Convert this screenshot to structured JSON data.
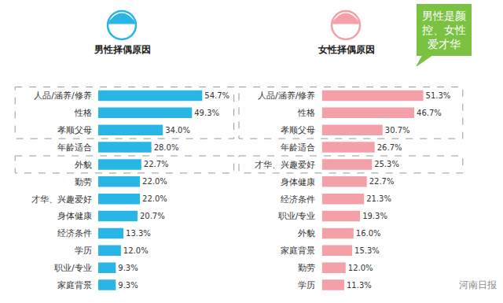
{
  "chart_data": [
    {
      "type": "bar",
      "title": "男性择偶原因",
      "orientation": "horizontal",
      "data_labels": true,
      "tick_labels": "y",
      "color": "#29b6e6",
      "categories": [
        "人品/涵养/修养",
        "性格",
        "孝顺父母",
        "年龄适合",
        "外貌",
        "勤劳",
        "才华、兴趣爱好",
        "身体健康",
        "经济条件",
        "学历",
        "职业/专业",
        "家庭背景"
      ],
      "values": [
        54.7,
        49.3,
        34.0,
        28.0,
        22.7,
        22.0,
        22.0,
        20.7,
        13.3,
        12.0,
        9.3,
        9.3
      ],
      "value_labels": [
        "54.7%",
        "49.3%",
        "34.0%",
        "28.0%",
        "22.7%",
        "22.0%",
        "22.0%",
        "20.7%",
        "13.3%",
        "12.0%",
        "9.3%",
        "9.3%"
      ],
      "xlim": [
        0,
        70
      ]
    },
    {
      "type": "bar",
      "title": "女性择偶原因",
      "orientation": "horizontal",
      "data_labels": true,
      "tick_labels": "y",
      "color": "#f4a0a8",
      "categories": [
        "人品/涵养/修养",
        "性格",
        "孝顺父母",
        "年龄适合",
        "才华、兴趣爱好",
        "身体健康",
        "经济条件",
        "职业/专业",
        "外貌",
        "家庭背景",
        "勤劳",
        "学历"
      ],
      "values": [
        51.3,
        46.7,
        30.7,
        26.7,
        25.3,
        22.7,
        21.3,
        19.3,
        16.0,
        15.3,
        12.0,
        11.3
      ],
      "value_labels": [
        "51.3%",
        "46.7%",
        "30.7%",
        "26.7%",
        "25.3%",
        "22.7%",
        "21.3%",
        "19.3%",
        "16.0%",
        "15.3%",
        "12.0%",
        "11.3%"
      ],
      "xlim": [
        0,
        70
      ],
      "annotations": [
        "男性是颜控、女性爱才华"
      ],
      "source": "河南日报"
    }
  ]
}
